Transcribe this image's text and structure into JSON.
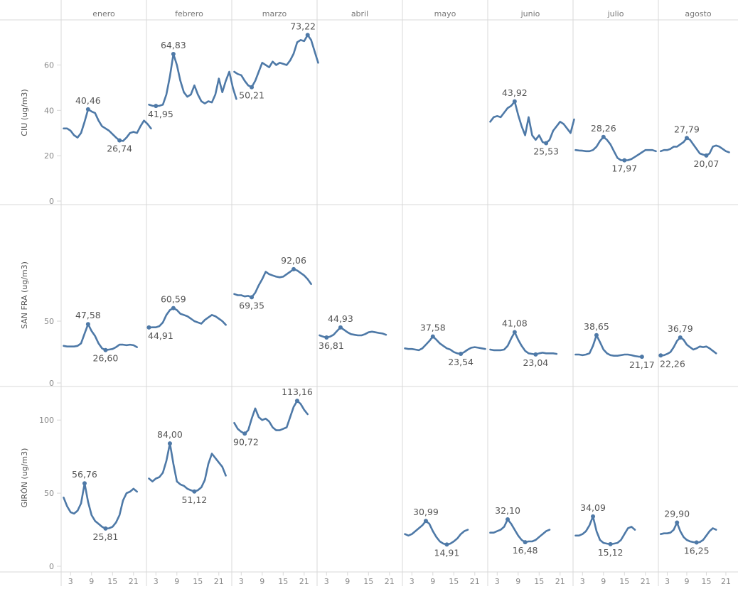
{
  "chart_data": {
    "type": "line",
    "months": [
      "enero",
      "febrero",
      "marzo",
      "abril",
      "mayo",
      "junio",
      "julio",
      "agosto"
    ],
    "x_tick_labels": [
      "3",
      "9",
      "15",
      "21"
    ],
    "line_color": "#4e79a7",
    "grid": true,
    "rows": [
      {
        "label": "CIU (ug/m3)",
        "ylim": [
          0,
          78
        ],
        "yticks": [
          0,
          20,
          40,
          60
        ],
        "ytick_labels": [
          "0",
          "20",
          "40",
          "60"
        ],
        "panels": [
          {
            "month": "enero",
            "values": [
              32,
              32,
              31,
              29,
              28,
              30,
              35,
              40.46,
              39.5,
              38.8,
              35.5,
              33,
              32,
              31,
              29.5,
              28,
              26.74,
              26.5,
              28,
              30,
              30.5,
              30,
              33,
              35.5,
              34,
              32
            ],
            "labels": [
              {
                "day": 8,
                "text": "40,46"
              },
              {
                "day": 17,
                "text": "26,74"
              }
            ]
          },
          {
            "month": "febrero",
            "values": [
              42.5,
              42,
              41.95,
              42,
              42.5,
              47,
              55,
              64.83,
              60,
              53,
              48,
              46,
              47,
              51,
              47,
              44,
              43,
              44,
              43.5,
              47,
              54,
              48,
              53,
              57,
              50,
              45
            ],
            "labels": [
              {
                "day": 3,
                "text": "41,95"
              },
              {
                "day": 8,
                "text": "64,83"
              }
            ]
          },
          {
            "month": "marzo",
            "values": [
              57,
              56,
              55.5,
              53,
              51,
              50.21,
              53,
              57,
              61,
              60,
              59,
              61.5,
              60,
              61,
              60.5,
              60,
              62,
              65,
              70,
              71,
              70.5,
              73.22,
              71,
              66,
              61
            ],
            "labels": [
              {
                "day": 6,
                "text": "50,21"
              },
              {
                "day": 22,
                "text": "73,22"
              }
            ]
          },
          {
            "month": "abril",
            "values": [],
            "labels": []
          },
          {
            "month": "mayo",
            "values": [],
            "labels": []
          },
          {
            "month": "junio",
            "values": [
              35,
              37,
              37.5,
              37,
              39,
              41,
              42,
              43.92,
              38,
              33,
              29,
              37,
              29,
              27,
              29,
              26,
              25.53,
              27,
              31,
              33,
              35,
              34,
              32,
              30,
              36
            ],
            "labels": [
              {
                "day": 8,
                "text": "43,92"
              },
              {
                "day": 17,
                "text": "25,53"
              }
            ]
          },
          {
            "month": "julio",
            "values": [
              22.5,
              22.3,
              22.2,
              22,
              22,
              22.5,
              24,
              26.5,
              28.26,
              27,
              25,
              22,
              19,
              18,
              17.97,
              18,
              18.5,
              19.5,
              20.5,
              21.5,
              22.5,
              22.5,
              22.5,
              22
            ],
            "labels": [
              {
                "day": 9,
                "text": "28,26"
              },
              {
                "day": 15,
                "text": "17,97"
              }
            ]
          },
          {
            "month": "agosto",
            "values": [
              22,
              22.5,
              22.5,
              23,
              24,
              24,
              25,
              26,
              27.79,
              27,
              25,
              23,
              21,
              20.5,
              20.07,
              21,
              24,
              24.5,
              24,
              23,
              22,
              21.5
            ],
            "labels": [
              {
                "day": 9,
                "text": "27,79"
              },
              {
                "day": 15,
                "text": "20,07"
              }
            ]
          }
        ]
      },
      {
        "label": "SAN FRA (ug/m3)",
        "ylim": [
          0,
          142
        ],
        "yticks": [
          0,
          50
        ],
        "ytick_labels": [
          "0",
          "50"
        ],
        "panels": [
          {
            "month": "enero",
            "values": [
              30,
              29.5,
              29.5,
              29.5,
              30,
              32,
              40,
              47.58,
              42,
              38,
              32,
              28,
              26.6,
              27,
              27.5,
              29,
              31,
              31,
              30.5,
              31,
              30.5,
              29
            ],
            "labels": [
              {
                "day": 8,
                "text": "47,58"
              },
              {
                "day": 13,
                "text": "26,60"
              }
            ]
          },
          {
            "month": "febrero",
            "values": [
              44.91,
              45,
              45,
              46,
              49,
              55,
              59,
              60.59,
              59,
              56,
              55,
              54,
              52,
              50,
              49,
              48,
              51,
              53,
              55,
              54,
              52,
              50,
              47
            ],
            "labels": [
              {
                "day": 1,
                "text": "44,91"
              },
              {
                "day": 8,
                "text": "60,59"
              }
            ]
          },
          {
            "month": "marzo",
            "values": [
              72,
              71,
              71,
              70,
              70.5,
              69.35,
              73,
              79,
              84,
              90,
              88,
              87,
              86,
              85.5,
              86,
              88,
              90,
              92.06,
              91,
              89,
              87,
              84,
              80
            ],
            "labels": [
              {
                "day": 6,
                "text": "69,35"
              },
              {
                "day": 18,
                "text": "92,06"
              }
            ]
          },
          {
            "month": "abril",
            "values": [
              38.5,
              37.5,
              36.81,
              37.5,
              39,
              42,
              44.93,
              43,
              41,
              39.5,
              39,
              38.5,
              38.5,
              39.5,
              41,
              41.5,
              41,
              40.5,
              40,
              39
            ],
            "labels": [
              {
                "day": 3,
                "text": "36,81"
              },
              {
                "day": 7,
                "text": "44,93"
              }
            ]
          },
          {
            "month": "mayo",
            "values": [
              28,
              27.5,
              27.5,
              27,
              26.5,
              28,
              31,
              34,
              37.58,
              35,
              32,
              30,
              28,
              27,
              25,
              24,
              23.54,
              25,
              27,
              28.5,
              29,
              28.5,
              28,
              27.5
            ],
            "labels": [
              {
                "day": 9,
                "text": "37,58"
              },
              {
                "day": 17,
                "text": "23,54"
              }
            ]
          },
          {
            "month": "junio",
            "values": [
              27,
              26.5,
              26.5,
              26.5,
              27,
              30,
              36,
              41.08,
              35,
              30,
              26,
              24,
              23.5,
              23.04,
              24,
              24.5,
              24,
              24,
              24,
              23.5
            ],
            "labels": [
              {
                "day": 8,
                "text": "41,08"
              },
              {
                "day": 14,
                "text": "23,04"
              }
            ]
          },
          {
            "month": "julio",
            "values": [
              23,
              23,
              22.5,
              23,
              24,
              30,
              38.65,
              33,
              27,
              24,
              22.5,
              22,
              22,
              22.5,
              23,
              23,
              22.5,
              21.8,
              21.3,
              21.17
            ],
            "labels": [
              {
                "day": 7,
                "text": "38,65"
              },
              {
                "day": 20,
                "text": "21,17"
              }
            ]
          },
          {
            "month": "agosto",
            "values": [
              22.26,
              22.5,
              23.5,
              25,
              29,
              34,
              36.79,
              35,
              31,
              29,
              27,
              28,
              29.5,
              29,
              29.5,
              28,
              26,
              24
            ],
            "labels": [
              {
                "day": 1,
                "text": "22,26"
              },
              {
                "day": 7,
                "text": "36,79"
              }
            ]
          }
        ]
      },
      {
        "label": "GIRÓN (ug/m3)",
        "ylim": [
          0,
          121
        ],
        "yticks": [
          0,
          50,
          100
        ],
        "ytick_labels": [
          "0",
          "50",
          "100"
        ],
        "panels": [
          {
            "month": "enero",
            "values": [
              47,
              41,
              37,
              36,
              38,
              43,
              56.76,
              44,
              35,
              31,
              29,
              27,
              25.81,
              26,
              27,
              30,
              35,
              45,
              50,
              51,
              53,
              51
            ],
            "labels": [
              {
                "day": 7,
                "text": "56,76"
              },
              {
                "day": 13,
                "text": "25,81"
              }
            ]
          },
          {
            "month": "febrero",
            "values": [
              60,
              58,
              60,
              61,
              64,
              72,
              84,
              70,
              58,
              56,
              55,
              53,
              52,
              51.12,
              52,
              54,
              59,
              70,
              77,
              74,
              71,
              68,
              62
            ],
            "labels": [
              {
                "day": 7,
                "text": "84,00"
              },
              {
                "day": 14,
                "text": "51,12"
              }
            ]
          },
          {
            "month": "marzo",
            "values": [
              98,
              94,
              92,
              90.72,
              93,
              101,
              108,
              102,
              100,
              101,
              99,
              95,
              93,
              93,
              94,
              95,
              102,
              109,
              113.16,
              111,
              107,
              104
            ],
            "labels": [
              {
                "day": 4,
                "text": "90,72"
              },
              {
                "day": 19,
                "text": "113,16"
              }
            ]
          },
          {
            "month": "abril",
            "values": [],
            "labels": []
          },
          {
            "month": "mayo",
            "values": [
              22,
              21,
              22,
              24,
              26,
              28,
              30.99,
              29,
              24,
              20,
              17,
              15.5,
              14.91,
              15.5,
              17,
              19,
              22,
              24,
              25
            ],
            "labels": [
              {
                "day": 7,
                "text": "30,99"
              },
              {
                "day": 13,
                "text": "14,91"
              }
            ]
          },
          {
            "month": "junio",
            "values": [
              23,
              23,
              24,
              25,
              27,
              32.1,
              29,
              25,
              21,
              18,
              16.48,
              17,
              17,
              18,
              20,
              22,
              24,
              25
            ],
            "labels": [
              {
                "day": 6,
                "text": "32,10"
              },
              {
                "day": 11,
                "text": "16,48"
              }
            ]
          },
          {
            "month": "julio",
            "values": [
              21,
              21,
              22,
              24,
              28,
              34.09,
              24,
              18,
              16,
              15.5,
              15.12,
              15.5,
              16,
              18,
              22,
              26,
              27,
              25
            ],
            "labels": [
              {
                "day": 6,
                "text": "34,09"
              },
              {
                "day": 11,
                "text": "15,12"
              }
            ]
          },
          {
            "month": "agosto",
            "values": [
              22,
              22.5,
              22.5,
              23,
              25,
              29.9,
              24,
              20,
              18,
              17,
              16.5,
              16.25,
              16.5,
              18,
              21,
              24,
              26,
              25
            ],
            "labels": [
              {
                "day": 6,
                "text": "29,90"
              },
              {
                "day": 12,
                "text": "16,25"
              }
            ]
          }
        ]
      }
    ]
  }
}
